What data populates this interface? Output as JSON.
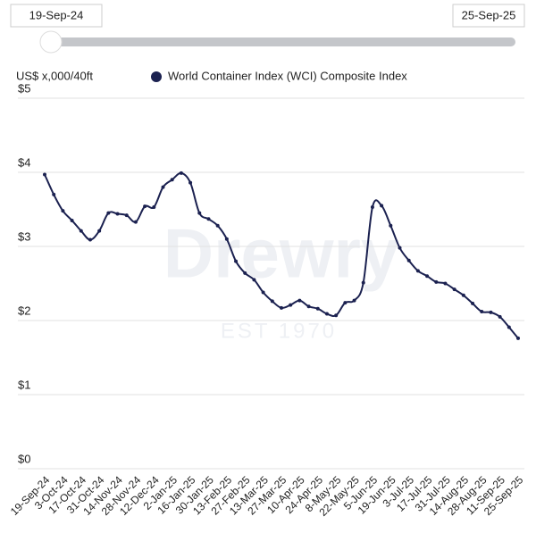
{
  "slider": {
    "start_label": "19-Sep-24",
    "end_label": "25-Sep-25"
  },
  "watermark": {
    "name": "Drewry",
    "tagline": "EST 1970"
  },
  "chart_data": {
    "type": "line",
    "y_axis_label": "US$ x,000/40ft",
    "categories": [
      "19-Sep-24",
      null,
      "3-Oct-24",
      null,
      "17-Oct-24",
      null,
      "31-Oct-24",
      null,
      "14-Nov-24",
      null,
      "28-Nov-24",
      null,
      "12-Dec-24",
      null,
      "2-Jan-25",
      null,
      "16-Jan-25",
      null,
      "30-Jan-25",
      null,
      "13-Feb-25",
      null,
      "27-Feb-25",
      null,
      "13-Mar-25",
      null,
      "27-Mar-25",
      null,
      "10-Apr-25",
      null,
      "24-Apr-25",
      null,
      "8-May-25",
      null,
      "22-May-25",
      null,
      "5-Jun-25",
      null,
      "19-Jun-25",
      null,
      "3-Jul-25",
      null,
      "17-Jul-25",
      null,
      "31-Jul-25",
      null,
      "14-Aug-25",
      null,
      "28-Aug-25",
      null,
      "11-Sep-25",
      null,
      "25-Sep-25"
    ],
    "series": [
      {
        "name": "World Container Index (WCI) Composite Index",
        "color": "#1b2150",
        "values": [
          3.97,
          3.7,
          3.48,
          3.35,
          3.21,
          3.09,
          3.21,
          3.45,
          3.44,
          3.42,
          3.33,
          3.54,
          3.53,
          3.8,
          3.9,
          3.99,
          3.86,
          3.45,
          3.37,
          3.28,
          3.1,
          2.8,
          2.64,
          2.55,
          2.38,
          2.26,
          2.17,
          2.21,
          2.27,
          2.19,
          2.16,
          2.09,
          2.07,
          2.24,
          2.27,
          2.51,
          3.53,
          3.55,
          3.28,
          2.98,
          2.81,
          2.67,
          2.6,
          2.52,
          2.5,
          2.42,
          2.34,
          2.23,
          2.12,
          2.11,
          2.05,
          1.91,
          1.76
        ]
      }
    ],
    "ylim": [
      0,
      5
    ],
    "yticks": [
      {
        "value": 0,
        "label": "$0"
      },
      {
        "value": 1,
        "label": "$1"
      },
      {
        "value": 2,
        "label": "$2"
      },
      {
        "value": 3,
        "label": "$3"
      },
      {
        "value": 4,
        "label": "$4"
      },
      {
        "value": 5,
        "label": "$5"
      }
    ],
    "grid": true
  }
}
